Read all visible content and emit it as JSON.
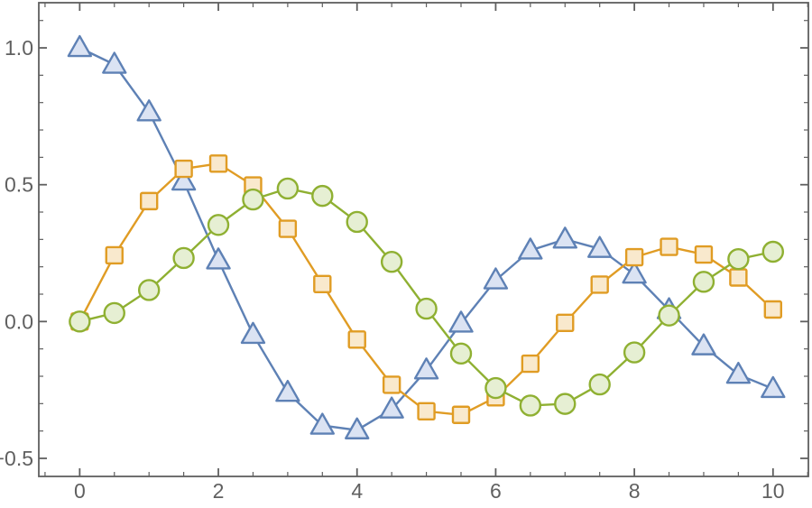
{
  "figure": {
    "background_color": "#ffffff",
    "frame_color": "#5f5f5f",
    "tick_color": "#5f5f5f",
    "tick_label_color": "#606060",
    "tick_label_font_size": 23
  },
  "chart_data": {
    "type": "line",
    "title": "",
    "xlabel": "",
    "ylabel": "",
    "grid": false,
    "legend": "none",
    "frame": true,
    "xlim": [
      -0.59,
      10.51
    ],
    "ylim": [
      -0.566,
      1.165
    ],
    "x_ticks": {
      "major": [
        0,
        2,
        4,
        6,
        8,
        10
      ],
      "labels": [
        "0",
        "2",
        "4",
        "6",
        "8",
        "10"
      ],
      "minor_step": 0.5
    },
    "y_ticks": {
      "major": [
        -0.5,
        0,
        0.5,
        1
      ],
      "labels": [
        "−0.5",
        "0.0",
        "0.5",
        "1.0"
      ],
      "minor_step": 0.1,
      "minor_min": -0.5,
      "minor_max": 1.1
    },
    "x": [
      0,
      0.5,
      1,
      1.5,
      2,
      2.5,
      3,
      3.5,
      4,
      4.5,
      5,
      5.5,
      6,
      6.5,
      7,
      7.5,
      8,
      8.5,
      9,
      9.5,
      10
    ],
    "series": [
      {
        "name": "series-1-blue-triangles",
        "marker": "triangle",
        "color": "#5e81b5",
        "marker_fill": "#dbe3f3",
        "values": [
          1.0,
          0.939,
          0.765,
          0.512,
          0.224,
          -0.048,
          -0.26,
          -0.38,
          -0.397,
          -0.321,
          -0.178,
          -0.007,
          0.151,
          0.26,
          0.3,
          0.266,
          0.172,
          0.042,
          -0.09,
          -0.194,
          -0.246
        ]
      },
      {
        "name": "series-2-orange-squares",
        "marker": "square",
        "color": "#e09c24",
        "marker_fill": "#f9e9cd",
        "values": [
          0.0,
          0.242,
          0.44,
          0.558,
          0.577,
          0.497,
          0.339,
          0.137,
          -0.066,
          -0.231,
          -0.328,
          -0.341,
          -0.277,
          -0.154,
          -0.005,
          0.135,
          0.235,
          0.273,
          0.245,
          0.161,
          0.044
        ]
      },
      {
        "name": "series-3-green-circles",
        "marker": "circle",
        "color": "#8fb032",
        "marker_fill": "#e6efd3",
        "values": [
          0.0,
          0.031,
          0.115,
          0.232,
          0.353,
          0.446,
          0.486,
          0.459,
          0.364,
          0.218,
          0.047,
          -0.117,
          -0.243,
          -0.307,
          -0.301,
          -0.23,
          -0.113,
          0.022,
          0.145,
          0.228,
          0.255
        ]
      }
    ]
  }
}
